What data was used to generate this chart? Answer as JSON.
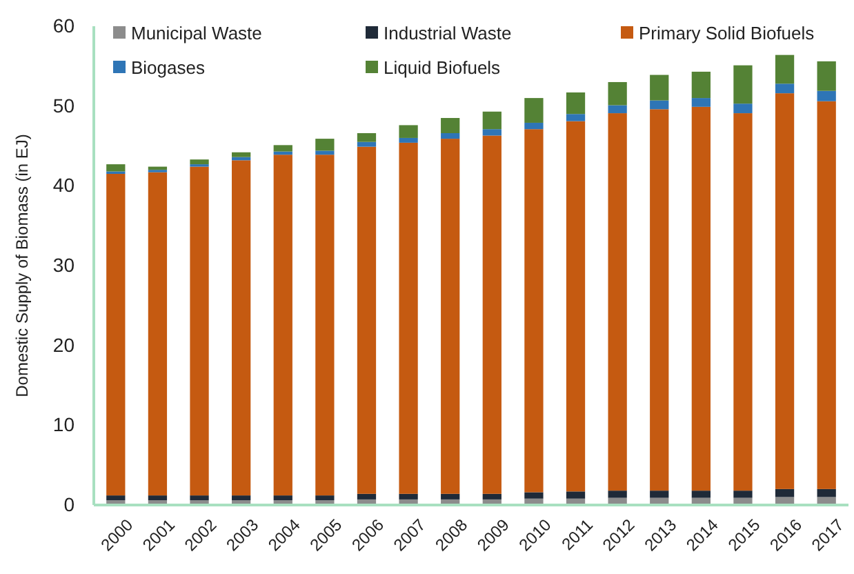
{
  "chart_data": {
    "type": "bar",
    "stacked": true,
    "ylabel": "Domestic Supply of Biomass (in EJ)",
    "categories": [
      "2000",
      "2001",
      "2002",
      "2003",
      "2004",
      "2005",
      "2006",
      "2007",
      "2008",
      "2009",
      "2010",
      "2011",
      "2012",
      "2013",
      "2014",
      "2015",
      "2016",
      "2017"
    ],
    "series": [
      {
        "name": "Municipal Waste",
        "color": "#8c8c8c",
        "values": [
          0.6,
          0.6,
          0.6,
          0.6,
          0.6,
          0.6,
          0.7,
          0.7,
          0.7,
          0.7,
          0.8,
          0.8,
          0.9,
          0.9,
          0.9,
          0.9,
          1.0,
          1.0
        ]
      },
      {
        "name": "Industrial Waste",
        "color": "#1f2a38",
        "values": [
          0.6,
          0.6,
          0.6,
          0.6,
          0.6,
          0.6,
          0.7,
          0.7,
          0.7,
          0.7,
          0.8,
          0.9,
          0.9,
          0.9,
          0.9,
          0.9,
          1.0,
          1.0
        ]
      },
      {
        "name": "Primary Solid Biofuels",
        "color": "#c55a11",
        "values": [
          40.3,
          40.5,
          41.2,
          42.0,
          42.7,
          42.7,
          43.5,
          44.0,
          44.5,
          44.9,
          45.5,
          46.4,
          47.3,
          47.8,
          48.1,
          47.3,
          49.6,
          48.6
        ]
      },
      {
        "name": "Biogases",
        "color": "#2e75b6",
        "values": [
          0.3,
          0.3,
          0.3,
          0.4,
          0.4,
          0.5,
          0.6,
          0.6,
          0.7,
          0.8,
          0.8,
          0.9,
          1.0,
          1.1,
          1.1,
          1.2,
          1.2,
          1.3
        ]
      },
      {
        "name": "Liquid Biofuels",
        "color": "#548235",
        "values": [
          0.9,
          0.4,
          0.6,
          0.6,
          0.8,
          1.5,
          1.1,
          1.6,
          1.9,
          2.2,
          3.1,
          2.7,
          2.9,
          3.2,
          3.3,
          4.8,
          3.6,
          3.7
        ]
      }
    ],
    "ylim": [
      0,
      60
    ],
    "yticks": [
      0,
      10,
      20,
      30,
      40,
      50,
      60
    ],
    "legend": "top"
  }
}
